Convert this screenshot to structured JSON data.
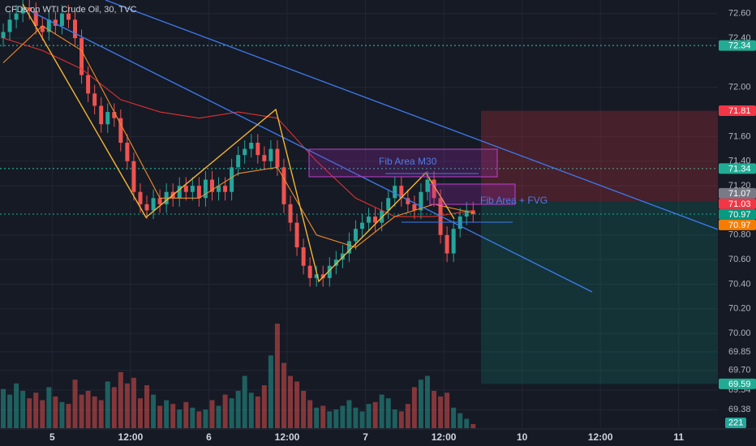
{
  "chart_data": {
    "type": "candlestick",
    "title": "CFDs on WTI Crude Oil, 30, TVC",
    "xlim": [
      0,
      110
    ],
    "xticks": [
      {
        "value": 8,
        "label": "5"
      },
      {
        "value": 20,
        "label": "12:00"
      },
      {
        "value": 32,
        "label": "6"
      },
      {
        "value": 44,
        "label": "12:00"
      },
      {
        "value": 56,
        "label": "7"
      },
      {
        "value": 68,
        "label": "12:00"
      },
      {
        "value": 80,
        "label": "10"
      },
      {
        "value": 92,
        "label": "12:00"
      },
      {
        "value": 104,
        "label": "11"
      }
    ],
    "ylim": [
      69.23,
      72.71
    ],
    "yticks": [
      {
        "value": 72.6,
        "label": "72.60"
      },
      {
        "value": 72.4,
        "label": "72.40"
      },
      {
        "value": 72,
        "label": "72.00"
      },
      {
        "value": 71.6,
        "label": "71.60"
      },
      {
        "value": 71.4,
        "label": "71.40"
      },
      {
        "value": 71.2,
        "label": "71.20"
      },
      {
        "value": 70.8,
        "label": "70.80"
      },
      {
        "value": 70.6,
        "label": "70.60"
      },
      {
        "value": 70.4,
        "label": "70.40"
      },
      {
        "value": 70.2,
        "label": "70.20"
      },
      {
        "value": 70,
        "label": "70.00"
      },
      69.85,
      {
        "value": 69.7,
        "label": "69.70"
      },
      69.54,
      69.38
    ],
    "grid": true,
    "up_color": "#26a69a",
    "down_color": "#ef5350",
    "open": [
      72.4,
      72.45,
      72.55,
      72.6,
      72.65,
      72.62,
      72.5,
      72.45,
      72.55,
      72.5,
      72.6,
      72.55,
      72.4,
      72.1,
      71.95,
      71.85,
      71.7,
      71.8,
      71.75,
      71.55,
      71.4,
      71.15,
      71.05,
      71.0,
      71.1,
      71.05,
      71.15,
      71.1,
      71.2,
      71.15,
      71.2,
      71.1,
      71.25,
      71.15,
      71.2,
      71.15,
      71.35,
      71.45,
      71.5,
      71.55,
      71.45,
      71.4,
      71.5,
      71.35,
      71.05,
      70.9,
      70.7,
      70.55,
      70.45,
      70.48,
      70.45,
      70.55,
      70.6,
      70.65,
      70.75,
      70.85,
      70.9,
      70.95,
      70.9,
      71.0,
      71.1,
      71.2,
      71.1,
      71.05,
      71.0,
      71.15,
      71.25,
      71.1,
      70.8,
      70.65,
      70.85,
      70.95,
      71.0
    ],
    "high": [
      72.52,
      72.62,
      72.67,
      72.72,
      72.72,
      72.69,
      72.57,
      72.62,
      72.62,
      72.67,
      72.67,
      72.62,
      72.47,
      72.17,
      72.02,
      71.92,
      71.87,
      71.87,
      71.82,
      71.62,
      71.47,
      71.22,
      71.12,
      71.17,
      71.17,
      71.22,
      71.22,
      71.27,
      71.27,
      71.27,
      71.27,
      71.32,
      71.32,
      71.27,
      71.27,
      71.42,
      71.52,
      71.57,
      71.62,
      71.62,
      71.52,
      71.57,
      71.57,
      71.42,
      71.12,
      70.97,
      70.77,
      70.62,
      70.55,
      70.55,
      70.62,
      70.67,
      70.72,
      70.82,
      70.92,
      70.97,
      71.02,
      71.02,
      71.07,
      71.17,
      71.27,
      71.27,
      71.17,
      71.12,
      71.22,
      71.32,
      71.32,
      71.17,
      70.87,
      70.92,
      71.02,
      71.07,
      71.07
    ],
    "low": [
      72.33,
      72.38,
      72.48,
      72.53,
      72.55,
      72.43,
      72.38,
      72.38,
      72.43,
      72.43,
      72.48,
      72.33,
      72.03,
      71.88,
      71.78,
      71.63,
      71.63,
      71.68,
      71.48,
      71.33,
      71.08,
      70.98,
      70.93,
      70.93,
      70.98,
      70.98,
      71.03,
      71.03,
      71.08,
      71.08,
      71.03,
      71.03,
      71.08,
      71.08,
      71.08,
      71.08,
      71.28,
      71.38,
      71.43,
      71.38,
      71.33,
      71.33,
      71.28,
      70.98,
      70.83,
      70.63,
      70.48,
      70.38,
      70.38,
      70.38,
      70.38,
      70.48,
      70.53,
      70.58,
      70.68,
      70.78,
      70.83,
      70.83,
      70.83,
      70.93,
      71.03,
      71.03,
      70.98,
      70.93,
      70.93,
      71.08,
      71.03,
      70.73,
      70.58,
      70.58,
      70.78,
      70.88,
      70.9
    ],
    "close": [
      72.45,
      72.55,
      72.6,
      72.65,
      72.62,
      72.5,
      72.45,
      72.55,
      72.5,
      72.6,
      72.55,
      72.4,
      72.1,
      71.95,
      71.85,
      71.7,
      71.8,
      71.75,
      71.55,
      71.4,
      71.15,
      71.05,
      71.0,
      71.1,
      71.05,
      71.15,
      71.1,
      71.2,
      71.15,
      71.2,
      71.1,
      71.25,
      71.15,
      71.2,
      71.15,
      71.35,
      71.45,
      71.5,
      71.55,
      71.45,
      71.4,
      71.5,
      71.35,
      71.05,
      70.9,
      70.7,
      70.55,
      70.45,
      70.48,
      70.45,
      70.55,
      70.6,
      70.65,
      70.75,
      70.85,
      70.9,
      70.95,
      70.9,
      71.0,
      71.1,
      71.2,
      71.1,
      71.05,
      71.0,
      71.15,
      71.25,
      71.1,
      70.8,
      70.65,
      70.85,
      70.95,
      71.0,
      70.97
    ],
    "volume": [
      2100,
      1800,
      2400,
      2000,
      1600,
      1900,
      1500,
      2200,
      1700,
      1400,
      1300,
      2600,
      1800,
      2000,
      1700,
      1500,
      2500,
      2200,
      3000,
      2400,
      2700,
      1600,
      2300,
      1800,
      1200,
      1500,
      1300,
      1000,
      1400,
      1100,
      900,
      1000,
      1500,
      1200,
      1800,
      1600,
      2000,
      2800,
      1900,
      1700,
      2300,
      3900,
      5600,
      3500,
      2800,
      2500,
      2000,
      1500,
      1100,
      1200,
      900,
      1000,
      1200,
      1500,
      1100,
      900,
      1300,
      1400,
      1800,
      1600,
      1000,
      900,
      1300,
      2200,
      2600,
      2800,
      2000,
      1700,
      1900,
      1100,
      800,
      500,
      221
    ],
    "vlim": [
      0,
      10000
    ],
    "series": [
      {
        "color": "#e0312f",
        "x": [
          0,
          6,
          12,
          18,
          24,
          30,
          36,
          42,
          48,
          54,
          60,
          66,
          72
        ],
        "values": [
          72.4,
          72.3,
          72.15,
          71.9,
          71.8,
          71.75,
          71.8,
          71.75,
          71.4,
          71.1,
          70.95,
          70.95,
          71.0
        ]
      },
      {
        "color": "#f28c28",
        "x": [
          0,
          6,
          12,
          18,
          24,
          30,
          36,
          42,
          48,
          54,
          60,
          66,
          72
        ],
        "values": [
          72.2,
          72.5,
          72.3,
          71.7,
          71.1,
          71.1,
          71.3,
          71.35,
          70.8,
          70.7,
          70.95,
          71.05,
          70.98
        ]
      }
    ],
    "levels": [
      {
        "value": 72.34,
        "color": "#22ab94",
        "style": "dotted"
      },
      {
        "value": 71.81,
        "color": "#f23645"
      },
      {
        "value": 71.34,
        "color": "#22ab94",
        "style": "dotted"
      },
      {
        "value": 71.07,
        "color": "#787b86"
      },
      {
        "value": 71.03,
        "color": "#f23645"
      },
      {
        "value": 70.97,
        "color": "#089981",
        "style": "dotted"
      },
      {
        "value": 70.97,
        "color": "#f57c00"
      },
      {
        "value": 69.59,
        "color": "#22ab94"
      }
    ],
    "annotations": [
      "Fib Area M30",
      "Fib Area + FVG"
    ]
  }
}
